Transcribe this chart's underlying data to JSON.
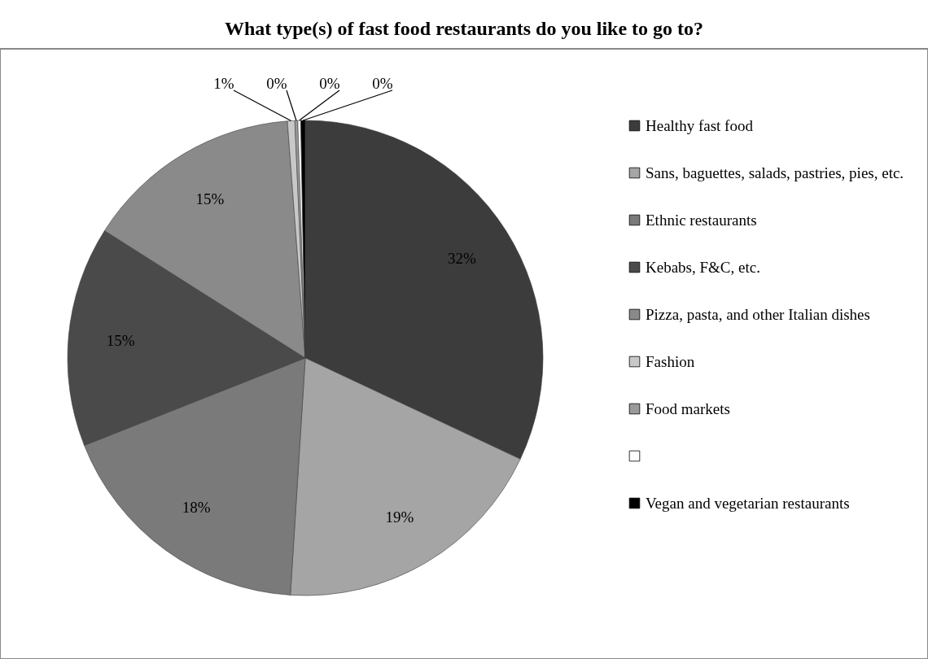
{
  "chart_data": {
    "type": "pie",
    "title": "What type(s) of fast food restaurants do you like to go to?",
    "categories": [
      "Healthy fast food",
      "Sans, baguettes, salads, pastries, pies, etc.",
      "Ethnic restaurants",
      "Kebabs, F&C, etc.",
      "Pizza, pasta, and other Italian dishes",
      "Fashion",
      "Food markets",
      null,
      "Vegan and vegetarian restaurants"
    ],
    "values": [
      32,
      19,
      18,
      15,
      14.8,
      0.5,
      0.2,
      0.2,
      0.3
    ],
    "value_labels": [
      "32%",
      "19%",
      "18%",
      "15%",
      "15%",
      "1%",
      "0%",
      "0%",
      "0%"
    ],
    "colors": [
      "#3c3c3c",
      "#a5a5a5",
      "#7a7a7a",
      "#4a4a4a",
      "#8a8a8a",
      "#c8c8c8",
      "#9a9a9a",
      "#ffffff",
      "#000000"
    ],
    "legend": "right"
  }
}
